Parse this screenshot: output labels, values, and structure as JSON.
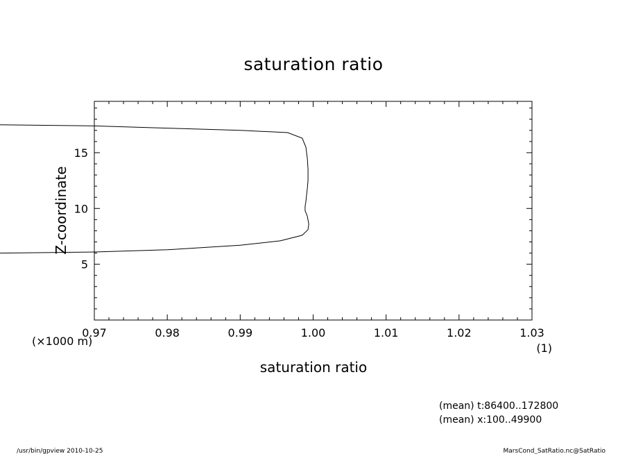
{
  "chart_data": {
    "type": "line",
    "title": "saturation ratio",
    "xlabel": "saturation ratio",
    "ylabel": "Z-coordinate",
    "x_unit": "(1)",
    "y_unit": "(×1000 m)",
    "xlim": [
      0.97,
      1.03
    ],
    "ylim": [
      0,
      19.6
    ],
    "x_ticks": [
      0.97,
      0.98,
      0.99,
      1.0,
      1.01,
      1.02,
      1.03
    ],
    "x_tick_labels": [
      "0.97",
      "0.98",
      "0.99",
      "1.00",
      "1.01",
      "1.02",
      "1.03"
    ],
    "y_ticks": [
      5,
      10,
      15
    ],
    "y_tick_labels": [
      "5",
      "10",
      "15"
    ],
    "grid": false,
    "series": [
      {
        "x": [
          0.957,
          0.97,
          0.98,
          0.99,
          0.9955,
          0.9985,
          0.9993,
          0.9994,
          0.9992,
          0.9989,
          0.9989,
          0.999,
          0.9991,
          0.9992,
          0.9993,
          0.9993,
          0.9992,
          0.999,
          0.9985,
          0.9965,
          0.99,
          0.98,
          0.97,
          0.957
        ],
        "y": [
          6.0,
          6.1,
          6.3,
          6.7,
          7.1,
          7.6,
          8.1,
          8.6,
          9.3,
          9.8,
          10.2,
          10.6,
          11.2,
          11.8,
          12.5,
          13.5,
          14.5,
          15.5,
          16.3,
          16.8,
          17.0,
          17.2,
          17.4,
          17.5
        ]
      }
    ],
    "annotations": [
      "(mean) t:86400..172800",
      "(mean) x:100..49900"
    ]
  },
  "footer": {
    "left": "/usr/bin/gpview   2010-10-25",
    "right": "MarsCond_SatRatio.nc@SatRatio"
  }
}
